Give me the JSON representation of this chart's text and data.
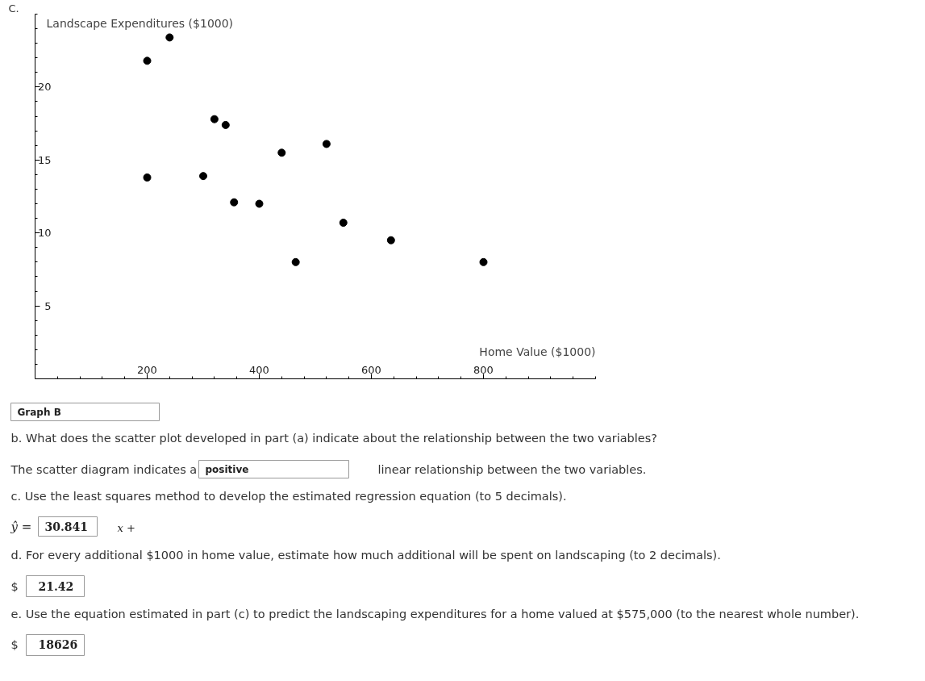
{
  "chart_data": {
    "type": "scatter",
    "title": "C.",
    "xlabel": "Home Value ($1000)",
    "ylabel": "Landscape Expenditures ($1000)",
    "x": [
      200,
      200,
      240,
      300,
      320,
      340,
      355,
      400,
      440,
      465,
      520,
      550,
      635,
      800
    ],
    "values": [
      21.8,
      13.8,
      23.4,
      13.9,
      17.8,
      17.4,
      12.1,
      12.0,
      15.5,
      8.0,
      16.1,
      10.7,
      9.5,
      8.0
    ],
    "color": "#000000",
    "marker": "circle",
    "xlim": [
      0,
      1000
    ],
    "ylim": [
      0,
      25
    ],
    "xticks": [
      {
        "value": 40,
        "label": null
      },
      {
        "value": 80,
        "label": null
      },
      {
        "value": 120,
        "label": null
      },
      {
        "value": 160,
        "label": null
      },
      200,
      {
        "value": 240,
        "label": null
      },
      {
        "value": 280,
        "label": null
      },
      {
        "value": 320,
        "label": null
      },
      {
        "value": 360,
        "label": null
      },
      400,
      {
        "value": 440,
        "label": null
      },
      {
        "value": 480,
        "label": null
      },
      {
        "value": 520,
        "label": null
      },
      {
        "value": 560,
        "label": null
      },
      600,
      {
        "value": 640,
        "label": null
      },
      {
        "value": 680,
        "label": null
      },
      {
        "value": 720,
        "label": null
      },
      {
        "value": 760,
        "label": null
      },
      800,
      {
        "value": 840,
        "label": null
      },
      {
        "value": 880,
        "label": null
      },
      {
        "value": 920,
        "label": null
      },
      {
        "value": 960,
        "label": null
      },
      {
        "value": 1000,
        "label": null
      }
    ],
    "yticks": [
      {
        "value": 1,
        "label": null
      },
      {
        "value": 2,
        "label": null
      },
      {
        "value": 3,
        "label": null
      },
      {
        "value": 4,
        "label": null
      },
      5,
      {
        "value": 6,
        "label": null
      },
      {
        "value": 7,
        "label": null
      },
      {
        "value": 8,
        "label": null
      },
      {
        "value": 9,
        "label": null
      },
      10,
      {
        "value": 11,
        "label": null
      },
      {
        "value": 12,
        "label": null
      },
      {
        "value": 13,
        "label": null
      },
      {
        "value": 14,
        "label": null
      },
      15,
      {
        "value": 16,
        "label": null
      },
      {
        "value": 17,
        "label": null
      },
      {
        "value": 18,
        "label": null
      },
      {
        "value": 19,
        "label": null
      },
      20,
      {
        "value": 21,
        "label": null
      },
      {
        "value": 22,
        "label": null
      },
      {
        "value": 23,
        "label": null
      },
      {
        "value": 24,
        "label": null
      },
      {
        "value": 25,
        "label": null
      }
    ],
    "annotations": [
      "Graph B",
      "b. What does the scatter plot developed in part (a) indicate about the relationship between the two variables?",
      "The scatter diagram indicates a",
      "positive",
      "linear relationship between the two variables.",
      "c. Use the least squares method to develop the estimated regression equation (to 5 decimals).",
      "ŷ =",
      "30.841",
      "x +",
      "d. For every additional $1000 in home value, estimate how much additional will be spent on landscaping (to 2 decimals).",
      "$",
      "21.42",
      "e. Use the equation estimated in part (c) to predict the landscaping expenditures for a home valued at $575,000 (to the nearest whole number).",
      "$",
      "18626"
    ]
  }
}
